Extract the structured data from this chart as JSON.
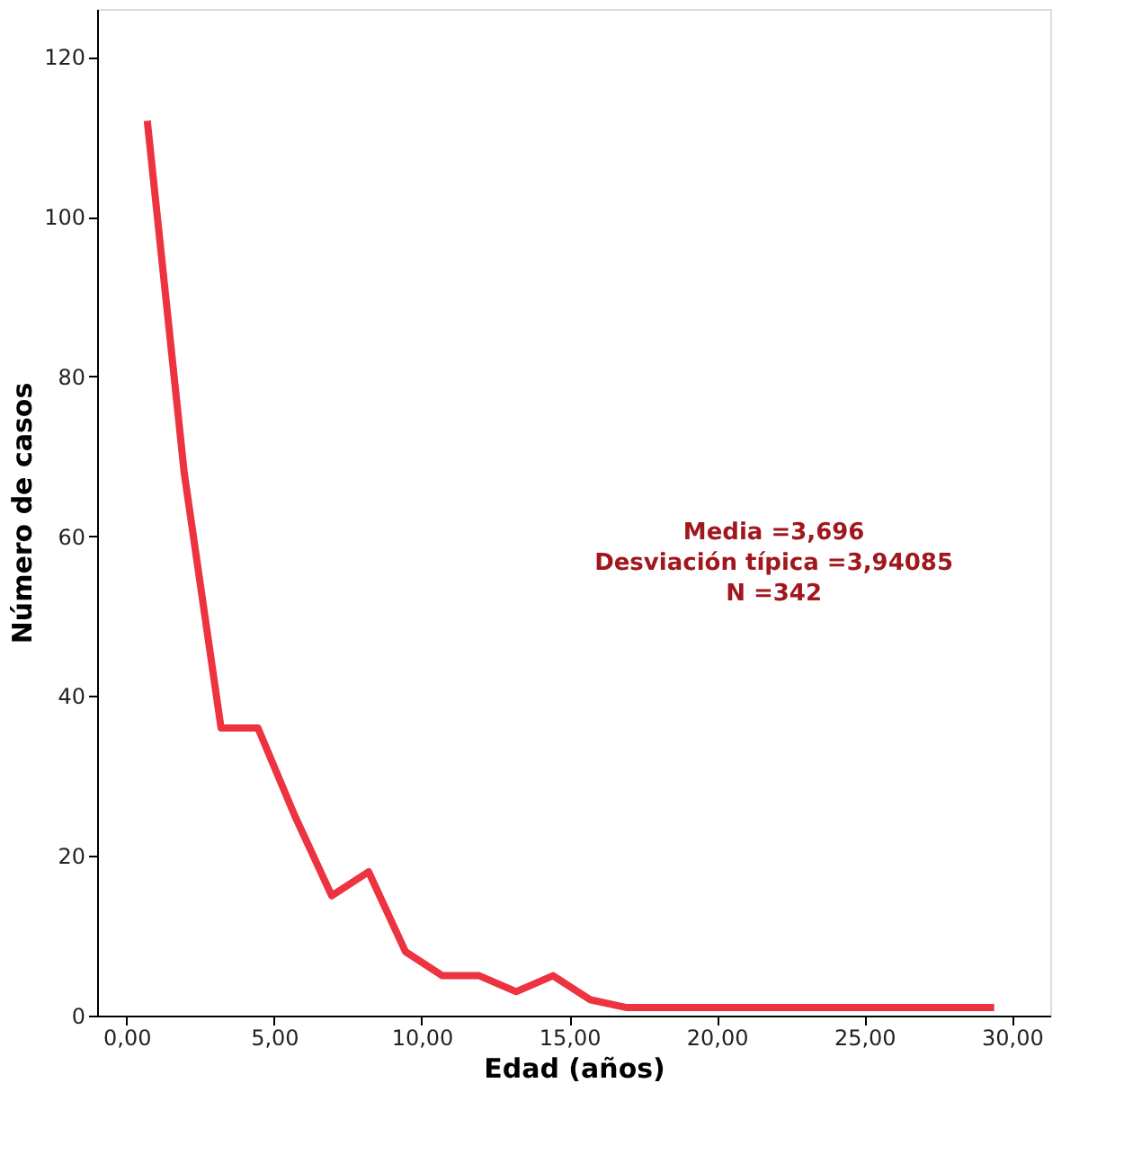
{
  "chart_data": {
    "type": "line",
    "xlabel": "Edad (años)",
    "ylabel": "Número de casos",
    "x": [
      0.7,
      1.95,
      3.2,
      4.45,
      5.7,
      6.95,
      8.2,
      9.45,
      10.7,
      11.95,
      13.2,
      14.45,
      15.7,
      16.95,
      29.4
    ],
    "series": [
      {
        "color": "#ee3340",
        "values": [
          112,
          68,
          36,
          36,
          25,
          15,
          18,
          8,
          5,
          5,
          3,
          5,
          2,
          1,
          1
        ]
      }
    ],
    "xlim": [
      -1.0,
      31.3
    ],
    "ylim": [
      0,
      126
    ],
    "xticks": [
      {
        "value": 0,
        "label": "0,00"
      },
      {
        "value": 5,
        "label": "5,00"
      },
      {
        "value": 10,
        "label": "10,00"
      },
      {
        "value": 15,
        "label": "15,00"
      },
      {
        "value": 20,
        "label": "20,00"
      },
      {
        "value": 25,
        "label": "25,00"
      },
      {
        "value": 30,
        "label": "30,00"
      }
    ],
    "yticks": [
      0,
      20,
      40,
      60,
      80,
      100,
      120
    ],
    "grid": false,
    "line_style": "solid",
    "marker": "none",
    "annotations": [
      "Media =3,696",
      "Desviación típica =3,94085",
      "N =342"
    ]
  }
}
